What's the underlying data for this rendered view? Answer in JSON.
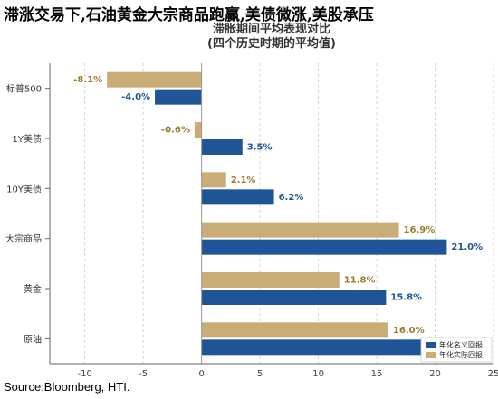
{
  "headline": "滞涨交易下,石油黄金大宗商品跑赢,美债微涨,美股承压",
  "source": "Source:Bloomberg, HTI.",
  "chart_data": {
    "type": "bar",
    "orientation": "horizontal",
    "title_lines": [
      "滞胀期间平均表现对比",
      "(四个历史时期的平均值)"
    ],
    "categories": [
      "标普500",
      "1Y美债",
      "10Y美债",
      "大宗商品",
      "黄金",
      "原油"
    ],
    "series": [
      {
        "name": "年化实际回报",
        "color": "#c9ac76",
        "label_color": "#9a7a2e",
        "values": [
          -8.1,
          -0.6,
          2.1,
          16.9,
          11.8,
          16.0
        ]
      },
      {
        "name": "年化名义回报",
        "color": "#1f5597",
        "label_color": "#1f5597",
        "values": [
          -4.0,
          3.5,
          6.2,
          21.0,
          15.8,
          19.8
        ]
      }
    ],
    "visible_labels": [
      [
        "-8.1%",
        "-0.6%",
        "2.1%",
        "16.9%",
        "11.8%",
        "16.0%"
      ],
      [
        "-4.0%",
        "3.5%",
        "6.2%",
        "21.0%",
        "15.8%",
        ""
      ]
    ],
    "xlim": [
      -13,
      25
    ],
    "xticks": [
      -10,
      -5,
      0,
      5,
      10,
      15,
      20,
      25
    ],
    "grid": true,
    "legend": {
      "position": "bottom-right",
      "order": [
        "年化名义回报",
        "年化实际回报"
      ]
    }
  }
}
